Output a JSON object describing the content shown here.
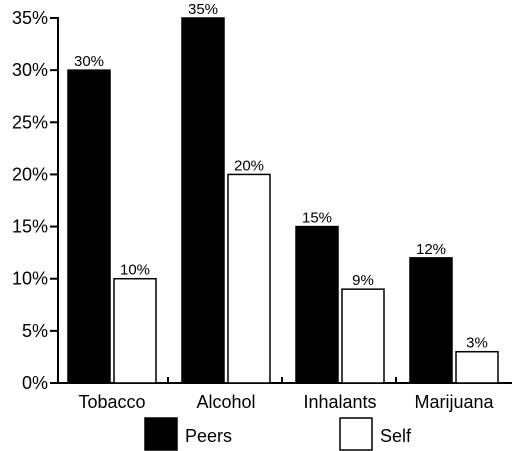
{
  "chart_data": {
    "type": "bar",
    "categories": [
      "Tobacco",
      "Alcohol",
      "Inhalants",
      "Marijuana"
    ],
    "series": [
      {
        "name": "Peers",
        "values": [
          30,
          35,
          15,
          12
        ],
        "labels": [
          "30%",
          "35%",
          "15%",
          "12%"
        ],
        "color": "#000000"
      },
      {
        "name": "Self",
        "values": [
          10,
          20,
          9,
          3
        ],
        "labels": [
          "10%",
          "20%",
          "9%",
          "3%"
        ],
        "color": "#ffffff"
      }
    ],
    "yticks": [
      0,
      5,
      10,
      15,
      20,
      25,
      30,
      35
    ],
    "ytick_labels": [
      "0%",
      "5%",
      "10%",
      "15%",
      "20%",
      "25%",
      "30%",
      "35%"
    ],
    "ylim": [
      0,
      35
    ],
    "legend_placement": "bottom",
    "grid": false
  }
}
